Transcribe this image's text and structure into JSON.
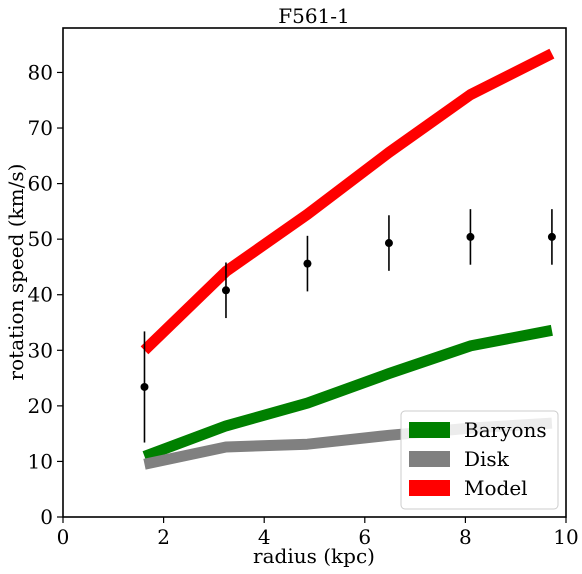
{
  "chart_data": {
    "type": "line",
    "title": "F561-1",
    "xlabel": "radius (kpc)",
    "ylabel": "rotation speed (km/s)",
    "xlim": [
      0,
      10
    ],
    "ylim": [
      0,
      88
    ],
    "xticks": [
      0,
      2,
      4,
      6,
      8,
      10
    ],
    "yticks": [
      0,
      10,
      20,
      30,
      40,
      50,
      60,
      70,
      80
    ],
    "grid": false,
    "legend_position": "lower-right",
    "series": [
      {
        "name": "Baryons",
        "color": "#008000",
        "x": [
          1.62,
          3.24,
          4.86,
          6.48,
          8.1,
          9.72
        ],
        "y": [
          10.9,
          16.4,
          20.5,
          25.8,
          30.8,
          33.6
        ]
      },
      {
        "name": "Disk",
        "color": "#808080",
        "x": [
          1.62,
          3.24,
          4.86,
          6.48,
          8.1,
          9.72
        ],
        "y": [
          9.5,
          12.6,
          13.1,
          14.7,
          16.0,
          16.9
        ]
      },
      {
        "name": "Model",
        "color": "#ff0000",
        "x": [
          1.62,
          3.24,
          4.86,
          6.48,
          8.1,
          9.72
        ],
        "y": [
          30.0,
          44.2,
          54.5,
          65.6,
          76.0,
          83.4
        ]
      }
    ],
    "observations": {
      "color": "#000000",
      "x": [
        1.62,
        3.24,
        4.86,
        6.48,
        8.1,
        9.72
      ],
      "y": [
        23.4,
        40.8,
        45.6,
        49.3,
        50.4,
        50.4
      ],
      "err": [
        10.0,
        5.0,
        5.0,
        5.0,
        5.0,
        5.0
      ]
    }
  }
}
